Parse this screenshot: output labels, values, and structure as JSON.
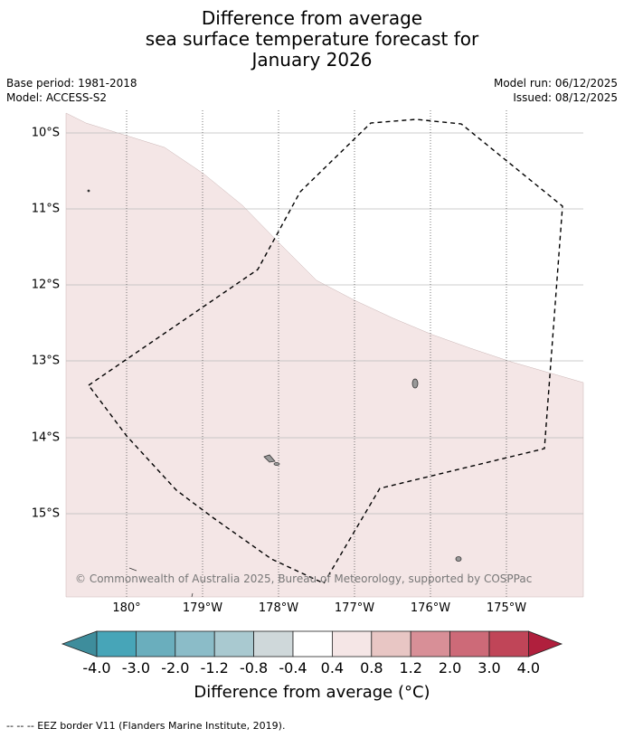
{
  "title": {
    "line1": "Difference from average",
    "line2": "sea surface temperature forecast for",
    "line3": "January 2026"
  },
  "meta": {
    "base_period": "Base period: 1981-2018",
    "model": "Model: ACCESS-S2",
    "model_run": "Model run: 06/12/2025",
    "issued": "Issued: 08/12/2025"
  },
  "map": {
    "latitude_labels": [
      "10°S",
      "11°S",
      "12°S",
      "13°S",
      "14°S",
      "15°S"
    ],
    "longitude_labels": [
      "180°",
      "179°W",
      "178°W",
      "177°W",
      "176°W",
      "175°W"
    ],
    "credit": "© Commonwealth of Australia 2025, Bureau of Meteorology, supported by COSPPac",
    "colors": {
      "anomaly_fill": "#f4e6e6",
      "neutral_fill": "#ffffff",
      "gridline": "#bbbbbb",
      "eez_border": "#000000",
      "land": "#999999"
    }
  },
  "colorbar": {
    "ticks": [
      "-4.0",
      "-3.0",
      "-2.0",
      "-1.2",
      "-0.8",
      "-0.4",
      "0.4",
      "0.8",
      "1.2",
      "2.0",
      "3.0",
      "4.0"
    ],
    "colors": [
      "#3e8d9c",
      "#47a5b8",
      "#6aaebd",
      "#8bbcc8",
      "#a9c9d0",
      "#cfd8da",
      "#ffffff",
      "#f5e6e6",
      "#e8c6c4",
      "#d88f97",
      "#cd6a78",
      "#c04558",
      "#b01f3d"
    ],
    "label": "Difference from average (°C)"
  },
  "footer": {
    "legend": "-- -- -- EEZ border V11 (Flanders Marine Institute, 2019)."
  }
}
